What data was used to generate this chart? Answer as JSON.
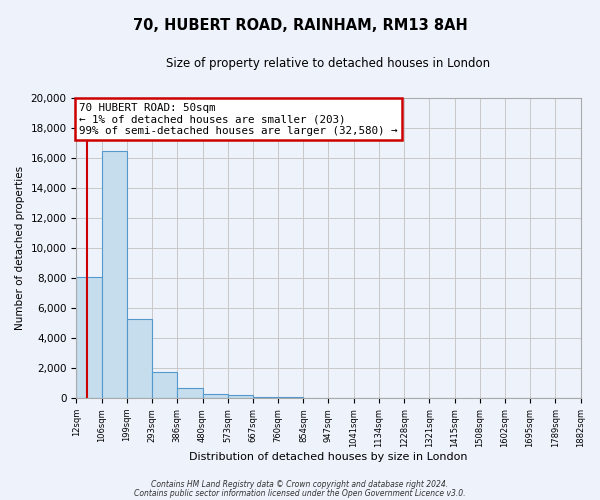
{
  "title": "70, HUBERT ROAD, RAINHAM, RM13 8AH",
  "subtitle": "Size of property relative to detached houses in London",
  "xlabel": "Distribution of detached houses by size in London",
  "ylabel": "Number of detached properties",
  "bar_values": [
    8100,
    16500,
    5300,
    1750,
    700,
    300,
    200,
    100,
    50,
    0,
    0,
    0,
    0,
    0,
    0,
    0,
    0,
    0,
    0,
    0
  ],
  "bin_edges": [
    12,
    106,
    199,
    293,
    386,
    480,
    573,
    667,
    760,
    854,
    947,
    1041,
    1134,
    1228,
    1321,
    1415,
    1508,
    1602,
    1695,
    1789,
    1882
  ],
  "tick_labels": [
    "12sqm",
    "106sqm",
    "199sqm",
    "293sqm",
    "386sqm",
    "480sqm",
    "573sqm",
    "667sqm",
    "760sqm",
    "854sqm",
    "947sqm",
    "1041sqm",
    "1134sqm",
    "1228sqm",
    "1321sqm",
    "1415sqm",
    "1508sqm",
    "1602sqm",
    "1695sqm",
    "1789sqm",
    "1882sqm"
  ],
  "bar_color": "#c5dded",
  "bar_edge_color": "#5599cc",
  "grid_color": "#c8c8c8",
  "background_color": "#eef2fb",
  "red_line_x": 50,
  "annotation_title": "70 HUBERT ROAD: 50sqm",
  "annotation_line1": "← 1% of detached houses are smaller (203)",
  "annotation_line2": "99% of semi-detached houses are larger (32,580) →",
  "red_color": "#cc0000",
  "ylim": [
    0,
    20000
  ],
  "yticks": [
    0,
    2000,
    4000,
    6000,
    8000,
    10000,
    12000,
    14000,
    16000,
    18000,
    20000
  ],
  "footer_line1": "Contains HM Land Registry data © Crown copyright and database right 2024.",
  "footer_line2": "Contains public sector information licensed under the Open Government Licence v3.0."
}
